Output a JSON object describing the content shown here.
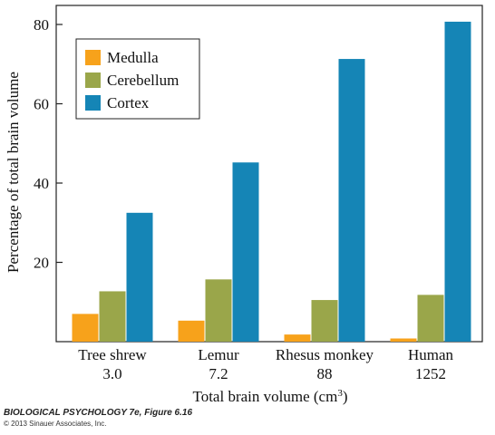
{
  "chart_data": {
    "type": "bar",
    "categories": [
      {
        "name": "Tree shrew",
        "volume": "3.0"
      },
      {
        "name": "Lemur",
        "volume": "7.2"
      },
      {
        "name": "Rhesus monkey",
        "volume": "88"
      },
      {
        "name": "Human",
        "volume": "1252"
      }
    ],
    "series": [
      {
        "name": "Medulla",
        "color": "#f7a21b",
        "values": [
          7,
          5.3,
          1.8,
          0.8
        ]
      },
      {
        "name": "Cerebellum",
        "color": "#9aa64a",
        "values": [
          12.7,
          15.7,
          10.5,
          11.8
        ]
      },
      {
        "name": "Cortex",
        "color": "#1585b6",
        "values": [
          32.5,
          45.2,
          71.3,
          80.7
        ]
      }
    ],
    "ylabel": "Percentage of total brain volume",
    "xlabel": "Total brain volume (cm",
    "xlabel_superscript": "3",
    "xlabel_suffix": ")",
    "ylim": [
      0,
      80
    ],
    "yticks": [
      20,
      40,
      60,
      80
    ],
    "grid": false,
    "legend_position": "top-left"
  },
  "credit": {
    "title": "BIOLOGICAL PSYCHOLOGY 7e, Figure 6.16",
    "copyright": "© 2013 Sinauer Associates, Inc."
  }
}
